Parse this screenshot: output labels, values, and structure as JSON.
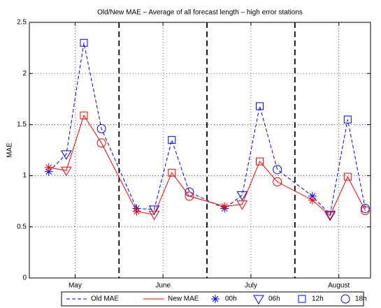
{
  "chart_data": {
    "type": "line",
    "title": "Old/New MAE – Average of all forecast length – high error stations",
    "y_label": "MAE",
    "x": [
      1,
      2,
      3,
      4,
      6,
      7,
      8,
      9,
      11,
      12,
      13,
      14,
      16,
      17,
      18,
      19
    ],
    "xlim": [
      -0.1,
      19.3
    ],
    "xticks": [
      {
        "value": 2.5,
        "label": "May"
      },
      {
        "value": 7.5,
        "label": "June"
      },
      {
        "value": 12.5,
        "label": "July"
      },
      {
        "value": 17.5,
        "label": "August"
      }
    ],
    "separators": [
      5,
      10,
      15
    ],
    "ylim": [
      0,
      2.5
    ],
    "yticks": [
      0,
      0.5,
      1,
      1.5,
      2,
      2.5
    ],
    "grid": true,
    "legend": "bottom",
    "markers": [
      {
        "name": "00h",
        "symbol": "asterisk"
      },
      {
        "name": "06h",
        "symbol": "triangle-down"
      },
      {
        "name": "12h",
        "symbol": "square"
      },
      {
        "name": "18h",
        "symbol": "circle"
      }
    ],
    "series": [
      {
        "name": "Old MAE",
        "color": "#0000ff",
        "dash": true,
        "values": [
          1.04,
          1.21,
          2.3,
          1.46,
          0.68,
          0.67,
          1.35,
          0.84,
          0.68,
          0.81,
          1.68,
          1.06,
          0.8,
          0.62,
          1.55,
          0.68
        ]
      },
      {
        "name": "New MAE",
        "color": "#ff0000",
        "dash": false,
        "values": [
          1.08,
          1.05,
          1.59,
          1.32,
          0.65,
          0.62,
          1.03,
          0.8,
          0.7,
          0.72,
          1.14,
          0.94,
          0.76,
          0.61,
          0.99,
          0.66
        ]
      }
    ]
  }
}
